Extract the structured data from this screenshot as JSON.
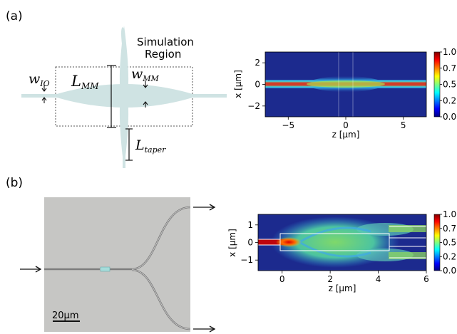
{
  "panel_a": {
    "label": "(a)",
    "schematic": {
      "region_label_line1": "Simulation",
      "region_label_line2": "Region",
      "w_io": "w",
      "w_io_sub": "IO",
      "l_mm": "L",
      "l_mm_sub": "MM",
      "w_mm": "w",
      "w_mm_sub": "MM",
      "l_taper": "L",
      "l_taper_sub": "taper"
    }
  },
  "panel_b": {
    "label": "(b)",
    "micrograph": {
      "scale_bar": "20µm"
    }
  },
  "colors": {
    "waveguide": "#cfe3e3",
    "micrograph_bg": "#c6c6c4"
  },
  "chart_data": [
    {
      "type": "heatmap",
      "panel": "(a)",
      "title": "",
      "xlabel": "z [µm]",
      "ylabel": "x [µm]",
      "xlim": [
        -7,
        7
      ],
      "ylim": [
        -3,
        3
      ],
      "xticks": [
        "−5",
        "0",
        "5"
      ],
      "yticks": [
        "2",
        "0",
        "−2"
      ],
      "colormap": "jet",
      "colorbar": {
        "range": [
          0,
          1
        ],
        "ticks": [
          "1.00",
          "0.75",
          "0.50",
          "0.25",
          "0.00"
        ]
      }
    },
    {
      "type": "heatmap",
      "panel": "(b)",
      "title": "",
      "xlabel": "z [µm]",
      "ylabel": "x [µm]",
      "xlim": [
        -1,
        6
      ],
      "ylim": [
        -1.6,
        1.6
      ],
      "xticks": [
        "0",
        "2",
        "4",
        "6"
      ],
      "yticks": [
        "1",
        "0",
        "−1"
      ],
      "colormap": "jet",
      "colorbar": {
        "range": [
          0,
          1
        ],
        "ticks": [
          "1.00",
          "0.75",
          "0.50",
          "0.25",
          "0.00"
        ]
      }
    }
  ]
}
